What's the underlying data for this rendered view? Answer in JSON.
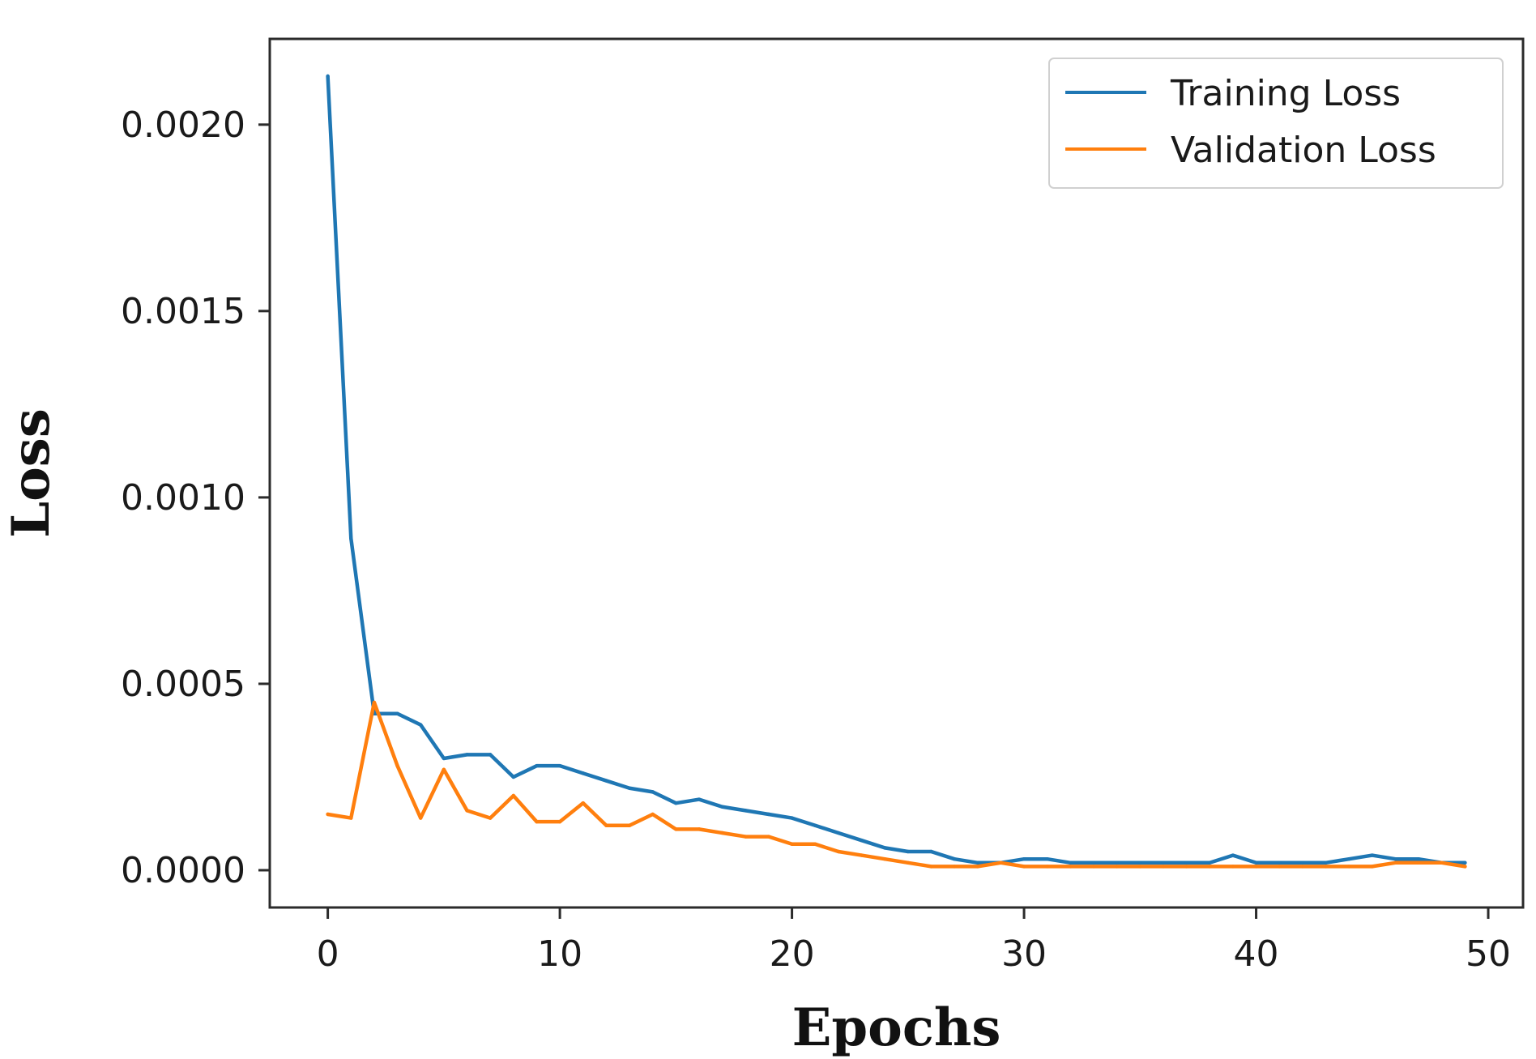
{
  "chart_data": {
    "type": "line",
    "title": "",
    "xlabel": "Epochs",
    "ylabel": "Loss",
    "xlim": [
      -2.5,
      51.5
    ],
    "ylim": [
      -0.0001,
      0.00223
    ],
    "xticks": [
      0,
      10,
      20,
      30,
      40,
      50
    ],
    "xtick_labels": [
      "0",
      "10",
      "20",
      "30",
      "40",
      "50"
    ],
    "yticks": [
      0.0,
      0.0005,
      0.001,
      0.0015,
      0.002
    ],
    "ytick_labels": [
      "0.0000",
      "0.0005",
      "0.0010",
      "0.0015",
      "0.0020"
    ],
    "grid": false,
    "legend_position": "top-right",
    "x": [
      0,
      1,
      2,
      3,
      4,
      5,
      6,
      7,
      8,
      9,
      10,
      11,
      12,
      13,
      14,
      15,
      16,
      17,
      18,
      19,
      20,
      21,
      22,
      23,
      24,
      25,
      26,
      27,
      28,
      29,
      30,
      31,
      32,
      33,
      34,
      35,
      36,
      37,
      38,
      39,
      40,
      41,
      42,
      43,
      44,
      45,
      46,
      47,
      48,
      49
    ],
    "series": [
      {
        "name": "Training Loss",
        "color": "#1f77b4",
        "values": [
          0.00213,
          0.00089,
          0.00042,
          0.00042,
          0.00039,
          0.0003,
          0.00031,
          0.00031,
          0.00025,
          0.00028,
          0.00028,
          0.00026,
          0.00024,
          0.00022,
          0.00021,
          0.00018,
          0.00019,
          0.00017,
          0.00016,
          0.00015,
          0.00014,
          0.00012,
          0.0001,
          8e-05,
          6e-05,
          5e-05,
          5e-05,
          3e-05,
          2e-05,
          2e-05,
          3e-05,
          3e-05,
          2e-05,
          2e-05,
          2e-05,
          2e-05,
          2e-05,
          2e-05,
          2e-05,
          4e-05,
          2e-05,
          2e-05,
          2e-05,
          2e-05,
          3e-05,
          4e-05,
          3e-05,
          3e-05,
          2e-05,
          2e-05
        ]
      },
      {
        "name": "Validation Loss",
        "color": "#ff7f0e",
        "values": [
          0.00015,
          0.00014,
          0.00045,
          0.00028,
          0.00014,
          0.00027,
          0.00016,
          0.00014,
          0.0002,
          0.00013,
          0.00013,
          0.00018,
          0.00012,
          0.00012,
          0.00015,
          0.00011,
          0.00011,
          0.0001,
          9e-05,
          9e-05,
          7e-05,
          7e-05,
          5e-05,
          4e-05,
          3e-05,
          2e-05,
          1e-05,
          1e-05,
          1e-05,
          2e-05,
          1e-05,
          1e-05,
          1e-05,
          1e-05,
          1e-05,
          1e-05,
          1e-05,
          1e-05,
          1e-05,
          1e-05,
          1e-05,
          1e-05,
          1e-05,
          1e-05,
          1e-05,
          1e-05,
          2e-05,
          2e-05,
          2e-05,
          1e-05
        ]
      }
    ]
  }
}
